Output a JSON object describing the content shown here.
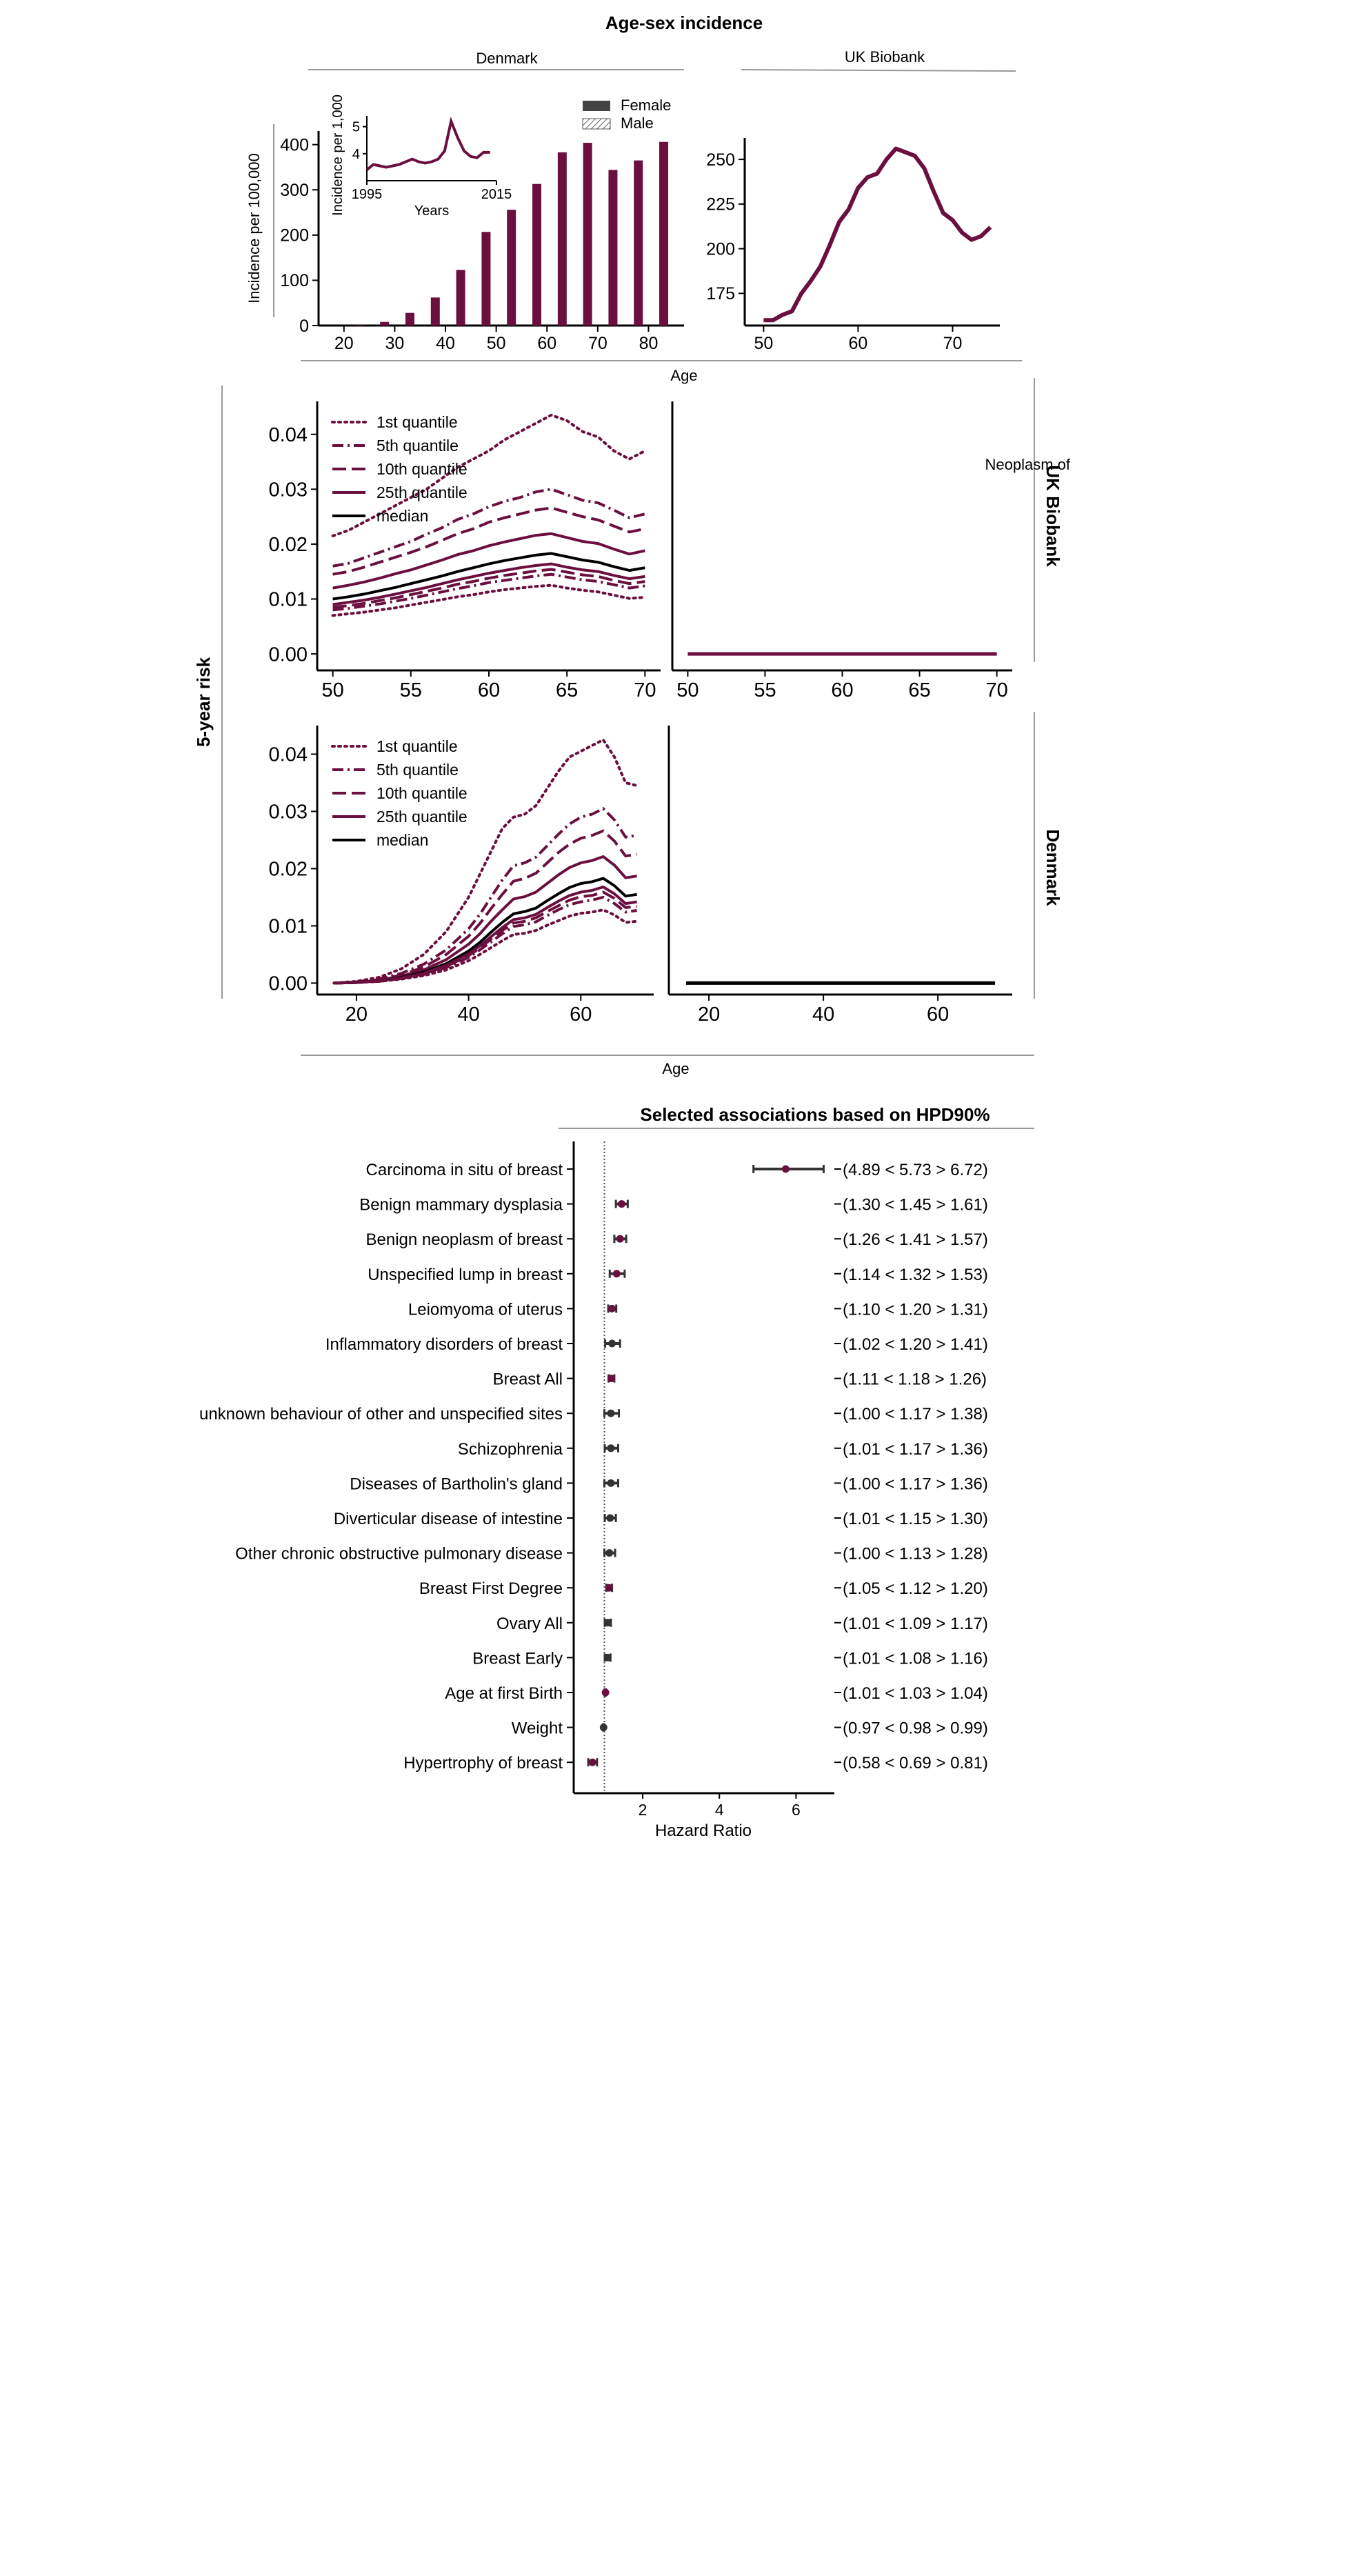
{
  "figure": {
    "main_title": "Age-sex incidence",
    "age_label_top": "Age",
    "age_label_mid": "Age",
    "five_year_label": "5-year risk",
    "risk_label_ukb": "UK Biobank",
    "risk_label_dk": "Denmark",
    "neoplasm_label": "Neoplasm of"
  },
  "colors": {
    "female": "#6b0f3f",
    "male": "#000000",
    "point_grey": "#333333",
    "rule": "#999999"
  },
  "chart_data": [
    {
      "id": "denmark-incidence",
      "type": "bar",
      "title": "Denmark",
      "ylabel": "Incidence per 100,000",
      "xlim": [
        15,
        87
      ],
      "ylim": [
        0,
        430
      ],
      "xticks": [
        20,
        30,
        40,
        50,
        60,
        70,
        80
      ],
      "yticks": [
        0,
        100,
        200,
        300,
        400
      ],
      "legend": [
        "Female",
        "Male"
      ],
      "legend_position": "top-right",
      "x": [
        18,
        23,
        28,
        33,
        38,
        43,
        48,
        53,
        58,
        63,
        68,
        73,
        78,
        83
      ],
      "series": [
        {
          "name": "Female",
          "values": [
            0,
            1,
            8,
            28,
            62,
            123,
            207,
            256,
            313,
            383,
            404,
            344,
            365,
            406
          ]
        },
        {
          "name": "Male",
          "values": [
            0,
            0,
            0,
            0,
            0,
            0,
            0,
            0,
            0,
            0,
            0,
            0,
            0,
            0
          ]
        }
      ]
    },
    {
      "id": "denmark-inset",
      "type": "line",
      "xlabel": "Years",
      "ylabel": "Incidence per 1,000",
      "xlim": [
        1995,
        2015
      ],
      "ylim": [
        3.0,
        5.4
      ],
      "xticks": [
        1995,
        2015
      ],
      "yticks": [
        4,
        5
      ],
      "x": [
        1995,
        1996,
        1997,
        1998,
        1999,
        2000,
        2001,
        2002,
        2003,
        2004,
        2005,
        2006,
        2007,
        2008,
        2009,
        2010,
        2011,
        2012,
        2013,
        2014
      ],
      "series": [
        {
          "name": "Female",
          "values": [
            3.4,
            3.6,
            3.55,
            3.5,
            3.55,
            3.6,
            3.7,
            3.8,
            3.7,
            3.65,
            3.7,
            3.8,
            4.1,
            5.2,
            4.6,
            4.1,
            3.9,
            3.85,
            4.05,
            4.05
          ]
        }
      ]
    },
    {
      "id": "ukb-incidence",
      "type": "line",
      "title": "UK Biobank",
      "xlim": [
        48,
        75
      ],
      "ylim": [
        157,
        262
      ],
      "xticks": [
        50,
        60,
        70
      ],
      "yticks": [
        175,
        200,
        225,
        250
      ],
      "x": [
        50,
        51,
        52,
        53,
        54,
        55,
        56,
        57,
        58,
        59,
        60,
        61,
        62,
        63,
        64,
        65,
        66,
        67,
        68,
        69,
        70,
        71,
        72,
        73,
        74
      ],
      "series": [
        {
          "name": "Female",
          "values": [
            160,
            160,
            163,
            165,
            175,
            182,
            190,
            202,
            215,
            222,
            234,
            240,
            242,
            250,
            256,
            254,
            252,
            245,
            232,
            220,
            216,
            209,
            205,
            207,
            212
          ]
        }
      ]
    },
    {
      "id": "ukb-risk-female",
      "type": "line",
      "xlim": [
        49,
        71
      ],
      "ylim": [
        -0.003,
        0.046
      ],
      "xticks": [
        50,
        55,
        60,
        65,
        70
      ],
      "yticks": [
        0.0,
        0.01,
        0.02,
        0.03,
        0.04
      ],
      "legend_position": "top-left",
      "x": [
        50,
        51,
        52,
        53,
        54,
        55,
        56,
        57,
        58,
        59,
        60,
        61,
        62,
        63,
        64,
        65,
        66,
        67,
        68,
        69,
        70
      ],
      "series": [
        {
          "name": "1st quantile",
          "values": [
            0.0215,
            0.0225,
            0.024,
            0.0255,
            0.027,
            0.0285,
            0.03,
            0.032,
            0.034,
            0.0355,
            0.037,
            0.039,
            0.0405,
            0.042,
            0.0435,
            0.0425,
            0.0405,
            0.0395,
            0.037,
            0.0355,
            0.037
          ]
        },
        {
          "name": "5th quantile",
          "values": [
            0.016,
            0.0165,
            0.0175,
            0.0185,
            0.0195,
            0.0205,
            0.0218,
            0.023,
            0.0245,
            0.0255,
            0.0268,
            0.0278,
            0.0285,
            0.0295,
            0.03,
            0.029,
            0.028,
            0.0275,
            0.0262,
            0.0248,
            0.0255
          ]
        },
        {
          "name": "10th quantile",
          "values": [
            0.0145,
            0.015,
            0.0158,
            0.0167,
            0.0176,
            0.0185,
            0.0195,
            0.0207,
            0.0219,
            0.0228,
            0.024,
            0.0248,
            0.0255,
            0.0262,
            0.0266,
            0.0258,
            0.025,
            0.0244,
            0.0233,
            0.0222,
            0.0228
          ]
        },
        {
          "name": "25th quantile",
          "values": [
            0.012,
            0.0125,
            0.0131,
            0.0138,
            0.0146,
            0.0153,
            0.0162,
            0.0171,
            0.0181,
            0.0188,
            0.0197,
            0.0204,
            0.021,
            0.0216,
            0.0219,
            0.0212,
            0.0205,
            0.0201,
            0.0191,
            0.0182,
            0.0188
          ]
        },
        {
          "name": "median",
          "values": [
            0.01,
            0.0104,
            0.0109,
            0.0115,
            0.0121,
            0.0128,
            0.0135,
            0.0142,
            0.015,
            0.0157,
            0.0164,
            0.017,
            0.0175,
            0.018,
            0.0183,
            0.0177,
            0.0171,
            0.0167,
            0.0159,
            0.0152,
            0.0157
          ]
        },
        {
          "name": "lower-1",
          "values": [
            0.009,
            0.0094,
            0.0098,
            0.0103,
            0.0109,
            0.0115,
            0.0121,
            0.0128,
            0.0135,
            0.0141,
            0.0147,
            0.0152,
            0.0157,
            0.0161,
            0.0164,
            0.0158,
            0.0153,
            0.015,
            0.0143,
            0.0137,
            0.0141
          ]
        },
        {
          "name": "lower-2",
          "values": [
            0.0085,
            0.0088,
            0.0092,
            0.0097,
            0.0102,
            0.0108,
            0.0114,
            0.012,
            0.0127,
            0.0132,
            0.0138,
            0.0143,
            0.0147,
            0.0151,
            0.0154,
            0.0149,
            0.0144,
            0.0141,
            0.0134,
            0.0128,
            0.0132
          ]
        },
        {
          "name": "lower-3",
          "values": [
            0.008,
            0.0083,
            0.0087,
            0.0091,
            0.0096,
            0.0101,
            0.0107,
            0.0113,
            0.0119,
            0.0124,
            0.013,
            0.0134,
            0.0138,
            0.0142,
            0.0145,
            0.014,
            0.0135,
            0.0132,
            0.0126,
            0.012,
            0.0124
          ]
        },
        {
          "name": "lower-4",
          "values": [
            0.007,
            0.0073,
            0.0076,
            0.008,
            0.0084,
            0.0089,
            0.0094,
            0.0099,
            0.0104,
            0.0108,
            0.0113,
            0.0117,
            0.012,
            0.0123,
            0.0125,
            0.012,
            0.0116,
            0.0113,
            0.0107,
            0.0101,
            0.0103
          ]
        }
      ]
    },
    {
      "id": "ukb-risk-male",
      "type": "line",
      "xlim": [
        49,
        71
      ],
      "ylim": [
        -0.003,
        0.046
      ],
      "xticks": [
        50,
        55,
        60,
        65,
        70
      ],
      "x": [
        50,
        70
      ],
      "series": [
        {
          "name": "Male",
          "values": [
            0,
            0
          ]
        }
      ]
    },
    {
      "id": "dk-risk-female",
      "type": "line",
      "xlim": [
        13,
        73
      ],
      "ylim": [
        -0.002,
        0.045
      ],
      "xticks": [
        20,
        40,
        60
      ],
      "yticks": [
        0.0,
        0.01,
        0.02,
        0.03,
        0.04
      ],
      "legend_position": "top-left",
      "x": [
        16,
        20,
        24,
        28,
        32,
        36,
        40,
        42,
        44,
        46,
        48,
        50,
        52,
        54,
        56,
        58,
        60,
        62,
        64,
        66,
        68,
        70
      ],
      "series": [
        {
          "name": "1st quantile",
          "values": [
            0.0,
            0.0003,
            0.001,
            0.0025,
            0.005,
            0.009,
            0.015,
            0.019,
            0.023,
            0.027,
            0.029,
            0.0295,
            0.031,
            0.034,
            0.037,
            0.0395,
            0.0405,
            0.0415,
            0.0425,
            0.0395,
            0.035,
            0.0345
          ]
        },
        {
          "name": "5th quantile",
          "values": [
            0.0,
            0.0002,
            0.0007,
            0.0017,
            0.0033,
            0.0058,
            0.0095,
            0.012,
            0.015,
            0.018,
            0.0205,
            0.021,
            0.022,
            0.024,
            0.026,
            0.0278,
            0.029,
            0.0295,
            0.0305,
            0.0285,
            0.0255,
            0.0258
          ]
        },
        {
          "name": "10th quantile",
          "values": [
            0.0,
            0.0002,
            0.0006,
            0.0014,
            0.0028,
            0.005,
            0.0082,
            0.0104,
            0.013,
            0.0155,
            0.0178,
            0.0183,
            0.0192,
            0.021,
            0.0228,
            0.0243,
            0.0253,
            0.0258,
            0.0266,
            0.0248,
            0.0222,
            0.0225
          ]
        },
        {
          "name": "25th quantile",
          "values": [
            0.0,
            0.0001,
            0.0005,
            0.0012,
            0.0023,
            0.0041,
            0.0068,
            0.0086,
            0.0108,
            0.0128,
            0.0147,
            0.0151,
            0.0159,
            0.0174,
            0.0189,
            0.0202,
            0.021,
            0.0214,
            0.0221,
            0.0206,
            0.0184,
            0.0187
          ]
        },
        {
          "name": "median",
          "values": [
            0.0,
            0.0001,
            0.0004,
            0.001,
            0.0019,
            0.0034,
            0.0056,
            0.0071,
            0.0089,
            0.0106,
            0.0121,
            0.0125,
            0.0131,
            0.0144,
            0.0156,
            0.0167,
            0.0174,
            0.0177,
            0.0183,
            0.017,
            0.0152,
            0.0155
          ]
        },
        {
          "name": "lower-1",
          "values": [
            0.0,
            0.0001,
            0.0004,
            0.0009,
            0.0017,
            0.0031,
            0.0051,
            0.0065,
            0.0081,
            0.0097,
            0.0111,
            0.0114,
            0.012,
            0.0132,
            0.0143,
            0.0153,
            0.0159,
            0.0162,
            0.0168,
            0.0156,
            0.0139,
            0.0142
          ]
        },
        {
          "name": "lower-2",
          "values": [
            0.0,
            0.0001,
            0.0003,
            0.0008,
            0.0016,
            0.0029,
            0.0048,
            0.0061,
            0.0077,
            0.0092,
            0.0105,
            0.0108,
            0.0114,
            0.0125,
            0.0135,
            0.0145,
            0.0151,
            0.0153,
            0.0159,
            0.0148,
            0.0132,
            0.0134
          ]
        },
        {
          "name": "lower-3",
          "values": [
            0.0,
            0.0001,
            0.0003,
            0.0008,
            0.0015,
            0.0027,
            0.0045,
            0.0058,
            0.0072,
            0.0086,
            0.0099,
            0.0102,
            0.0107,
            0.0118,
            0.0128,
            0.0137,
            0.0142,
            0.0145,
            0.015,
            0.0139,
            0.0124,
            0.0127
          ]
        },
        {
          "name": "lower-4",
          "values": [
            0.0,
            0.0001,
            0.0003,
            0.0007,
            0.0013,
            0.0023,
            0.0039,
            0.005,
            0.0062,
            0.0074,
            0.0085,
            0.0087,
            0.0092,
            0.0101,
            0.0109,
            0.0117,
            0.0122,
            0.0124,
            0.0128,
            0.0119,
            0.0106,
            0.0108
          ]
        }
      ]
    },
    {
      "id": "dk-risk-male",
      "type": "line",
      "xlim": [
        13,
        73
      ],
      "ylim": [
        -0.002,
        0.045
      ],
      "xticks": [
        20,
        40,
        60
      ],
      "x": [
        16,
        70
      ],
      "series": [
        {
          "name": "Male",
          "values": [
            0,
            0
          ]
        }
      ]
    },
    {
      "id": "hazard-forest",
      "type": "scatter",
      "title": "Selected associations based on HPD90%",
      "xlabel": "Hazard Ratio",
      "xlim": [
        0.2,
        7.0
      ],
      "xticks": [
        2,
        4,
        6
      ],
      "reference_line": 1,
      "rows": [
        {
          "label": "Carcinoma in situ of breast",
          "lo": 4.89,
          "mid": 5.73,
          "hi": 6.72,
          "ci_text": "(4.89 < 5.73 > 6.72)",
          "sex": "female"
        },
        {
          "label": "Benign mammary dysplasia",
          "lo": 1.3,
          "mid": 1.45,
          "hi": 1.61,
          "ci_text": "(1.30 < 1.45 > 1.61)",
          "sex": "female"
        },
        {
          "label": "Benign neoplasm of breast",
          "lo": 1.26,
          "mid": 1.41,
          "hi": 1.57,
          "ci_text": "(1.26 < 1.41 > 1.57)",
          "sex": "female"
        },
        {
          "label": "Unspecified lump in breast",
          "lo": 1.14,
          "mid": 1.32,
          "hi": 1.53,
          "ci_text": "(1.14 < 1.32 > 1.53)",
          "sex": "female"
        },
        {
          "label": "Leiomyoma of uterus",
          "lo": 1.1,
          "mid": 1.2,
          "hi": 1.31,
          "ci_text": "(1.10 < 1.20 > 1.31)",
          "sex": "female"
        },
        {
          "label": "Inflammatory disorders of breast",
          "lo": 1.02,
          "mid": 1.2,
          "hi": 1.41,
          "ci_text": "(1.02 < 1.20 > 1.41)",
          "sex": "both"
        },
        {
          "label": "Breast All",
          "lo": 1.11,
          "mid": 1.18,
          "hi": 1.26,
          "ci_text": "(1.11 < 1.18 > 1.26)",
          "sex": "female"
        },
        {
          "label": "unknown behaviour of other and unspecified sites",
          "lo": 1.0,
          "mid": 1.17,
          "hi": 1.38,
          "ci_text": "(1.00 < 1.17 > 1.38)",
          "sex": "both"
        },
        {
          "label": "Schizophrenia",
          "lo": 1.01,
          "mid": 1.17,
          "hi": 1.36,
          "ci_text": "(1.01 < 1.17 > 1.36)",
          "sex": "both"
        },
        {
          "label": "Diseases of Bartholin's gland",
          "lo": 1.0,
          "mid": 1.17,
          "hi": 1.36,
          "ci_text": "(1.00 < 1.17 > 1.36)",
          "sex": "both"
        },
        {
          "label": "Diverticular disease of intestine",
          "lo": 1.01,
          "mid": 1.15,
          "hi": 1.3,
          "ci_text": "(1.01 < 1.15 > 1.30)",
          "sex": "both"
        },
        {
          "label": "Other chronic obstructive pulmonary disease",
          "lo": 1.0,
          "mid": 1.13,
          "hi": 1.28,
          "ci_text": "(1.00 < 1.13 > 1.28)",
          "sex": "both"
        },
        {
          "label": "Breast First Degree",
          "lo": 1.05,
          "mid": 1.12,
          "hi": 1.2,
          "ci_text": "(1.05 < 1.12 > 1.20)",
          "sex": "female"
        },
        {
          "label": "Ovary All",
          "lo": 1.01,
          "mid": 1.09,
          "hi": 1.17,
          "ci_text": "(1.01 < 1.09 > 1.17)",
          "sex": "both"
        },
        {
          "label": "Breast Early",
          "lo": 1.01,
          "mid": 1.08,
          "hi": 1.16,
          "ci_text": "(1.01 < 1.08 > 1.16)",
          "sex": "both"
        },
        {
          "label": "Age at first Birth",
          "lo": 1.01,
          "mid": 1.03,
          "hi": 1.04,
          "ci_text": "(1.01 < 1.03 > 1.04)",
          "sex": "female"
        },
        {
          "label": "Weight",
          "lo": 0.97,
          "mid": 0.98,
          "hi": 0.99,
          "ci_text": "(0.97 < 0.98 > 0.99)",
          "sex": "both"
        },
        {
          "label": "Hypertrophy of breast",
          "lo": 0.58,
          "mid": 0.69,
          "hi": 0.81,
          "ci_text": "(0.58 < 0.69 > 0.81)",
          "sex": "female"
        }
      ]
    }
  ]
}
